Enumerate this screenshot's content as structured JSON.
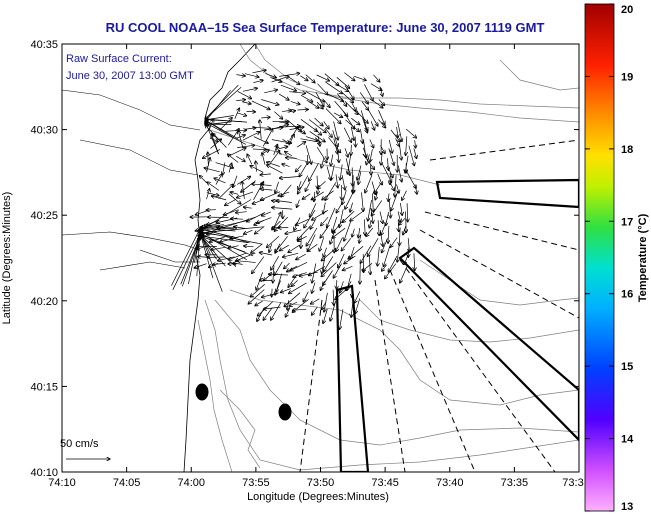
{
  "title": "RU COOL  NOAA–15  Sea Surface Temperature:  June 30, 2007 1119 GMT",
  "annotation": {
    "line1": "Raw Surface Current:",
    "line2": "June 30, 2007 13:00 GMT"
  },
  "scale_label": "50 cm/s",
  "x_axis": {
    "label": "Longitude (Degrees:Minutes)",
    "ticks": [
      "74:10",
      "74:05",
      "74:00",
      "73:55",
      "73:50",
      "73:45",
      "73:40",
      "73:35",
      "73:3"
    ]
  },
  "y_axis": {
    "label": "Latitude (Degrees:Minutes)",
    "ticks": [
      "40:10",
      "40:15",
      "40:20",
      "40:25",
      "40:30",
      "40:35"
    ]
  },
  "colorbar": {
    "label": "Temperature (°C)",
    "ticks": [
      "13",
      "14",
      "15",
      "16",
      "17",
      "18",
      "19",
      "20"
    ],
    "colors": [
      "#ff8cff",
      "#c040ff",
      "#4000ff",
      "#0060ff",
      "#00c0ff",
      "#00e0a0",
      "#40e040",
      "#e0e000",
      "#ffa000",
      "#ff3000",
      "#c00000",
      "#800000"
    ]
  },
  "colors": {
    "title": "#1a1aa0",
    "vectors": "#000000",
    "contours": "#808080",
    "land_outline": "#000000"
  }
}
